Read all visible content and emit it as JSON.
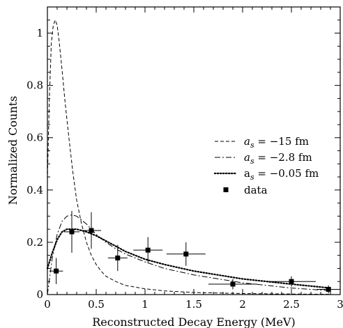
{
  "chart_data": {
    "type": "line",
    "title": "",
    "xlabel": "Reconstructed Decay Energy (MeV)",
    "ylabel": "Normalized Counts",
    "xlim": [
      0,
      3
    ],
    "ylim": [
      0,
      1.1
    ],
    "x_ticks": [
      0,
      0.5,
      1,
      1.5,
      2,
      2.5,
      3
    ],
    "x_tick_labels": [
      "0",
      "0.5",
      "1",
      "1.5",
      "2",
      "2.5",
      "3"
    ],
    "y_ticks": [
      0,
      0.2,
      0.4,
      0.6,
      0.8,
      1.0
    ],
    "y_tick_labels": [
      "0",
      "0.2",
      "0.4",
      "0.6",
      "0.8",
      "1"
    ],
    "grid": false,
    "legend_position": "right-middle",
    "series": [
      {
        "label_sym": "a",
        "label_sub": "s",
        "label_rest": " = −15 fm",
        "style": "dashed",
        "x": [
          0.0,
          0.02,
          0.04,
          0.06,
          0.08,
          0.1,
          0.12,
          0.15,
          0.18,
          0.22,
          0.26,
          0.3,
          0.35,
          0.4,
          0.45,
          0.5,
          0.55,
          0.6,
          0.7,
          0.8,
          1.0,
          1.2,
          1.5,
          2.0,
          2.5,
          2.9
        ],
        "y": [
          0.44,
          0.75,
          0.96,
          1.03,
          1.05,
          1.03,
          0.97,
          0.86,
          0.74,
          0.6,
          0.47,
          0.36,
          0.27,
          0.2,
          0.15,
          0.115,
          0.09,
          0.07,
          0.05,
          0.035,
          0.022,
          0.014,
          0.008,
          0.004,
          0.002,
          0.001
        ]
      },
      {
        "label_sym": "a",
        "label_sub": "s",
        "label_rest": " = −2.8 fm",
        "style": "dashdot",
        "x": [
          0.0,
          0.05,
          0.1,
          0.15,
          0.2,
          0.25,
          0.3,
          0.35,
          0.4,
          0.5,
          0.6,
          0.7,
          0.8,
          1.0,
          1.2,
          1.5,
          2.0,
          2.5,
          2.9
        ],
        "y": [
          0.0,
          0.14,
          0.23,
          0.28,
          0.3,
          0.305,
          0.3,
          0.285,
          0.27,
          0.23,
          0.2,
          0.175,
          0.155,
          0.125,
          0.1,
          0.075,
          0.045,
          0.025,
          0.015
        ]
      },
      {
        "label_sym": "a",
        "label_sub": "s",
        "label_rest": " = −0.05 fm",
        "style": "dotted",
        "x": [
          0.0,
          0.05,
          0.1,
          0.15,
          0.2,
          0.25,
          0.3,
          0.35,
          0.4,
          0.5,
          0.6,
          0.7,
          0.8,
          1.0,
          1.2,
          1.5,
          2.0,
          2.5,
          2.9
        ],
        "y": [
          0.1,
          0.16,
          0.21,
          0.24,
          0.25,
          0.25,
          0.25,
          0.245,
          0.24,
          0.225,
          0.205,
          0.185,
          0.165,
          0.135,
          0.115,
          0.09,
          0.06,
          0.04,
          0.025
        ]
      }
    ],
    "data_points": {
      "label": "data",
      "points": [
        {
          "x": 0.09,
          "y": 0.09,
          "xerr": 0.07,
          "yerr": 0.05
        },
        {
          "x": 0.25,
          "y": 0.24,
          "xerr": 0.08,
          "yerr": 0.08
        },
        {
          "x": 0.45,
          "y": 0.245,
          "xerr": 0.1,
          "yerr": 0.07
        },
        {
          "x": 0.72,
          "y": 0.14,
          "xerr": 0.1,
          "yerr": 0.05
        },
        {
          "x": 1.03,
          "y": 0.17,
          "xerr": 0.15,
          "yerr": 0.05
        },
        {
          "x": 1.42,
          "y": 0.155,
          "xerr": 0.2,
          "yerr": 0.045
        },
        {
          "x": 1.9,
          "y": 0.04,
          "xerr": 0.25,
          "yerr": 0.02
        },
        {
          "x": 2.5,
          "y": 0.05,
          "xerr": 0.25,
          "yerr": 0.02
        },
        {
          "x": 2.88,
          "y": 0.02,
          "xerr": 0.12,
          "yerr": 0.015
        }
      ]
    }
  }
}
